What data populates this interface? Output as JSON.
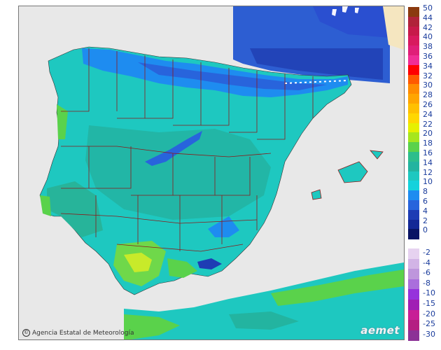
{
  "credit": {
    "icon": "©",
    "text": "Agencia Estatal de Meteorología"
  },
  "logo": {
    "text": "aemet",
    "icon": "aemet-logo-icon"
  },
  "legend": {
    "positive": [
      {
        "label": "50",
        "color": "#8b3a0f"
      },
      {
        "label": "44",
        "color": "#b0233a"
      },
      {
        "label": "42",
        "color": "#c71a4a"
      },
      {
        "label": "40",
        "color": "#d81a5e"
      },
      {
        "label": "38",
        "color": "#e01e78"
      },
      {
        "label": "36",
        "color": "#f02d96"
      },
      {
        "label": "34",
        "color": "#ff0000"
      },
      {
        "label": "32",
        "color": "#ff5a00"
      },
      {
        "label": "30",
        "color": "#ff8c00"
      },
      {
        "label": "28",
        "color": "#ffa500"
      },
      {
        "label": "26",
        "color": "#ffc000"
      },
      {
        "label": "24",
        "color": "#ffd700"
      },
      {
        "label": "22",
        "color": "#e6f000"
      },
      {
        "label": "20",
        "color": "#a6e61e"
      },
      {
        "label": "18",
        "color": "#5ad24b"
      },
      {
        "label": "16",
        "color": "#2dbe8c"
      },
      {
        "label": "14",
        "color": "#23b4a0"
      },
      {
        "label": "12",
        "color": "#1ec8c0"
      },
      {
        "label": "10",
        "color": "#14d2dc"
      },
      {
        "label": "8",
        "color": "#1e8cf0"
      },
      {
        "label": "6",
        "color": "#2864dc"
      },
      {
        "label": "4",
        "color": "#1e3cb4"
      },
      {
        "label": "2",
        "color": "#142896"
      },
      {
        "label": "0",
        "color": "#0a1464"
      }
    ],
    "negative": [
      {
        "label": "-2",
        "color": "#e6d2f0"
      },
      {
        "label": "-4",
        "color": "#d2b4e6"
      },
      {
        "label": "-6",
        "color": "#be96dc"
      },
      {
        "label": "-8",
        "color": "#aa6edc"
      },
      {
        "label": "-10",
        "color": "#9632dc"
      },
      {
        "label": "-15",
        "color": "#a01eb4"
      },
      {
        "label": "-20",
        "color": "#c81e96"
      },
      {
        "label": "-25",
        "color": "#b41e82"
      },
      {
        "label": "-30",
        "color": "#8c3296"
      }
    ]
  }
}
